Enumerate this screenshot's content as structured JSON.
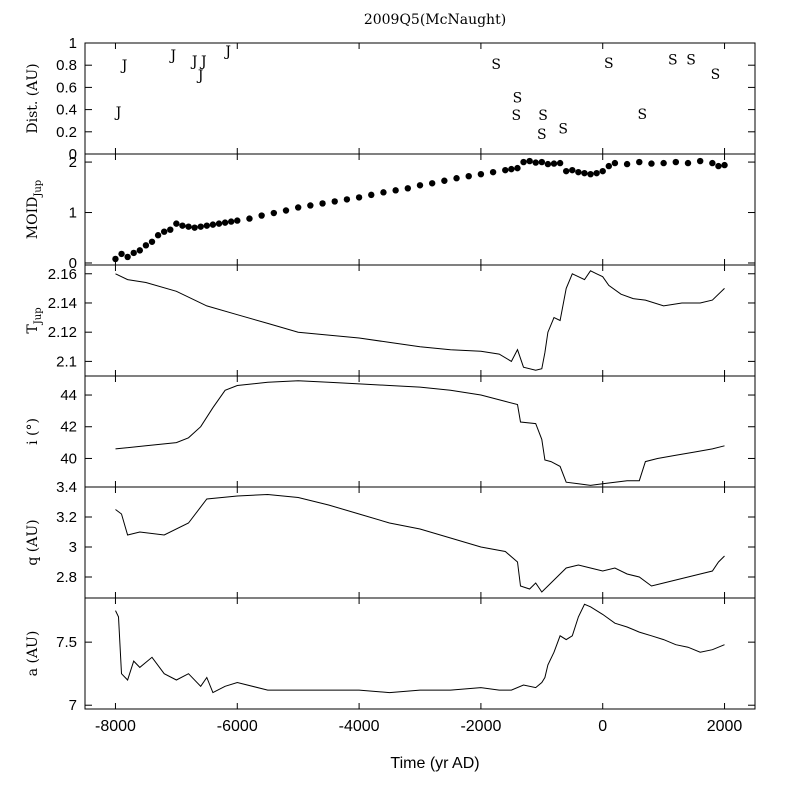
{
  "chart_data": {
    "type": "line",
    "title": "2009Q5(McNaught)",
    "xlabel": "Time (yr AD)",
    "xlim": [
      -8500,
      2500
    ],
    "x_ticks": [
      -8000,
      -6000,
      -4000,
      -2000,
      0,
      2000
    ],
    "panels": [
      {
        "id": "dist",
        "ylabel": "Dist. (AU)",
        "ylim": [
          0,
          1
        ],
        "y_ticks": [
          0,
          0.2,
          0.4,
          0.6,
          0.8,
          1
        ],
        "kind": "markers",
        "points": [
          {
            "x": -7950,
            "y": 0.38,
            "label": "J"
          },
          {
            "x": -7850,
            "y": 0.8,
            "label": "J"
          },
          {
            "x": -7050,
            "y": 0.89,
            "label": "J"
          },
          {
            "x": -6700,
            "y": 0.84,
            "label": "J"
          },
          {
            "x": -6600,
            "y": 0.71,
            "label": "J"
          },
          {
            "x": -6550,
            "y": 0.84,
            "label": "J"
          },
          {
            "x": -6150,
            "y": 0.93,
            "label": "J"
          },
          {
            "x": -1750,
            "y": 0.81,
            "label": "S"
          },
          {
            "x": -1400,
            "y": 0.51,
            "label": "S"
          },
          {
            "x": -1420,
            "y": 0.35,
            "label": "S"
          },
          {
            "x": -980,
            "y": 0.35,
            "label": "S"
          },
          {
            "x": -1000,
            "y": 0.18,
            "label": "S"
          },
          {
            "x": -650,
            "y": 0.23,
            "label": "S"
          },
          {
            "x": 100,
            "y": 0.82,
            "label": "S"
          },
          {
            "x": 650,
            "y": 0.36,
            "label": "S"
          },
          {
            "x": 1150,
            "y": 0.85,
            "label": "S"
          },
          {
            "x": 1450,
            "y": 0.85,
            "label": "S"
          },
          {
            "x": 1850,
            "y": 0.72,
            "label": "S"
          }
        ]
      },
      {
        "id": "moid",
        "ylabel": "MOID",
        "ylabel_sub": "Jup",
        "ylim": [
          -0.04,
          2.16
        ],
        "y_ticks": [
          0,
          1,
          2
        ],
        "kind": "dots",
        "x": [
          -8000,
          -7900,
          -7800,
          -7700,
          -7600,
          -7500,
          -7400,
          -7300,
          -7200,
          -7100,
          -7000,
          -6900,
          -6800,
          -6700,
          -6600,
          -6500,
          -6400,
          -6300,
          -6200,
          -6100,
          -6000,
          -5800,
          -5600,
          -5400,
          -5200,
          -5000,
          -4800,
          -4600,
          -4400,
          -4200,
          -4000,
          -3800,
          -3600,
          -3400,
          -3200,
          -3000,
          -2800,
          -2600,
          -2400,
          -2200,
          -2000,
          -1800,
          -1600,
          -1500,
          -1400,
          -1300,
          -1200,
          -1100,
          -1000,
          -900,
          -800,
          -700,
          -600,
          -500,
          -400,
          -300,
          -200,
          -100,
          0,
          100,
          200,
          400,
          600,
          800,
          1000,
          1200,
          1400,
          1600,
          1800,
          1900,
          2000
        ],
        "y": [
          0.08,
          0.18,
          0.12,
          0.2,
          0.25,
          0.35,
          0.42,
          0.55,
          0.62,
          0.66,
          0.78,
          0.74,
          0.72,
          0.7,
          0.72,
          0.74,
          0.76,
          0.78,
          0.8,
          0.82,
          0.84,
          0.88,
          0.94,
          0.99,
          1.04,
          1.1,
          1.14,
          1.18,
          1.22,
          1.26,
          1.3,
          1.35,
          1.4,
          1.44,
          1.48,
          1.54,
          1.58,
          1.63,
          1.68,
          1.72,
          1.76,
          1.8,
          1.84,
          1.86,
          1.88,
          2.0,
          2.02,
          1.99,
          2.0,
          1.96,
          1.97,
          1.98,
          1.82,
          1.84,
          1.8,
          1.78,
          1.76,
          1.78,
          1.82,
          1.92,
          1.98,
          1.96,
          2.0,
          1.97,
          1.98,
          2.0,
          1.98,
          2.02,
          1.98,
          1.92,
          1.94
        ]
      },
      {
        "id": "tjup",
        "ylabel": "T",
        "ylabel_sub": "Jup",
        "ylim": [
          2.09,
          2.166
        ],
        "y_ticks": [
          2.1,
          2.12,
          2.14,
          2.16
        ],
        "y_tick_labels": [
          "2.1",
          "2.12",
          "2.14",
          "2.16"
        ],
        "kind": "line",
        "x": [
          -8000,
          -7800,
          -7500,
          -7000,
          -6500,
          -6000,
          -5500,
          -5000,
          -4500,
          -4000,
          -3500,
          -3000,
          -2500,
          -2000,
          -1700,
          -1500,
          -1400,
          -1300,
          -1100,
          -1000,
          -950,
          -900,
          -800,
          -700,
          -600,
          -500,
          -400,
          -300,
          -200,
          -100,
          0,
          100,
          300,
          500,
          700,
          1000,
          1300,
          1600,
          1800,
          2000
        ],
        "y": [
          2.16,
          2.156,
          2.154,
          2.148,
          2.138,
          2.132,
          2.126,
          2.12,
          2.118,
          2.116,
          2.113,
          2.11,
          2.108,
          2.107,
          2.105,
          2.1,
          2.108,
          2.096,
          2.094,
          2.095,
          2.106,
          2.12,
          2.13,
          2.128,
          2.15,
          2.16,
          2.158,
          2.156,
          2.162,
          2.16,
          2.158,
          2.152,
          2.146,
          2.143,
          2.142,
          2.138,
          2.14,
          2.14,
          2.142,
          2.15
        ]
      },
      {
        "id": "incl",
        "ylabel": "i (°)",
        "ylim": [
          38.2,
          45.2
        ],
        "y_ticks": [
          40,
          42,
          44
        ],
        "kind": "line",
        "x": [
          -8000,
          -7500,
          -7000,
          -6800,
          -6600,
          -6400,
          -6200,
          -6000,
          -5500,
          -5000,
          -4500,
          -4000,
          -3500,
          -3000,
          -2500,
          -2000,
          -1600,
          -1400,
          -1350,
          -1100,
          -1000,
          -950,
          -850,
          -700,
          -600,
          -400,
          -200,
          0,
          200,
          400,
          600,
          700,
          900,
          1200,
          1500,
          1800,
          2000
        ],
        "y": [
          40.6,
          40.8,
          41.0,
          41.3,
          42.0,
          43.2,
          44.3,
          44.6,
          44.8,
          44.9,
          44.8,
          44.7,
          44.6,
          44.5,
          44.3,
          44.0,
          43.6,
          43.4,
          42.3,
          42.2,
          41.2,
          39.9,
          39.8,
          39.5,
          38.5,
          38.4,
          38.3,
          38.4,
          38.5,
          38.6,
          38.6,
          39.8,
          40.0,
          40.2,
          40.4,
          40.6,
          40.8
        ]
      },
      {
        "id": "q",
        "ylabel": "q (AU)",
        "ylim": [
          2.66,
          3.4
        ],
        "y_ticks": [
          2.8,
          3,
          3.2,
          3.4
        ],
        "kind": "line",
        "x": [
          -8000,
          -7900,
          -7800,
          -7600,
          -7200,
          -6800,
          -6500,
          -6000,
          -5500,
          -5000,
          -4500,
          -4000,
          -3500,
          -3000,
          -2500,
          -2000,
          -1600,
          -1400,
          -1350,
          -1200,
          -1100,
          -1000,
          -900,
          -800,
          -600,
          -400,
          -200,
          0,
          200,
          400,
          600,
          800,
          1000,
          1200,
          1400,
          1600,
          1800,
          1900,
          2000
        ],
        "y": [
          3.25,
          3.22,
          3.08,
          3.1,
          3.08,
          3.16,
          3.32,
          3.34,
          3.35,
          3.33,
          3.28,
          3.22,
          3.16,
          3.12,
          3.06,
          3.0,
          2.97,
          2.9,
          2.74,
          2.72,
          2.76,
          2.7,
          2.74,
          2.78,
          2.86,
          2.88,
          2.86,
          2.84,
          2.86,
          2.82,
          2.8,
          2.74,
          2.76,
          2.78,
          2.8,
          2.82,
          2.84,
          2.9,
          2.94
        ]
      },
      {
        "id": "a",
        "ylabel": "a (AU)",
        "ylim": [
          6.97,
          7.85
        ],
        "y_ticks": [
          7,
          7.5
        ],
        "kind": "line",
        "x": [
          -8000,
          -7950,
          -7900,
          -7800,
          -7700,
          -7600,
          -7400,
          -7200,
          -7000,
          -6800,
          -6600,
          -6500,
          -6400,
          -6200,
          -6000,
          -5500,
          -5000,
          -4500,
          -4000,
          -3500,
          -3000,
          -2500,
          -2000,
          -1700,
          -1500,
          -1300,
          -1100,
          -1000,
          -950,
          -900,
          -800,
          -700,
          -600,
          -500,
          -400,
          -300,
          -200,
          0,
          200,
          400,
          600,
          800,
          1000,
          1200,
          1400,
          1600,
          1800,
          2000
        ],
        "y": [
          7.75,
          7.7,
          7.25,
          7.2,
          7.35,
          7.3,
          7.38,
          7.25,
          7.2,
          7.25,
          7.15,
          7.22,
          7.1,
          7.15,
          7.18,
          7.12,
          7.12,
          7.12,
          7.12,
          7.1,
          7.12,
          7.12,
          7.14,
          7.12,
          7.12,
          7.16,
          7.14,
          7.18,
          7.22,
          7.32,
          7.42,
          7.55,
          7.52,
          7.55,
          7.7,
          7.8,
          7.78,
          7.72,
          7.65,
          7.62,
          7.58,
          7.55,
          7.52,
          7.48,
          7.46,
          7.42,
          7.44,
          7.48
        ]
      }
    ]
  }
}
